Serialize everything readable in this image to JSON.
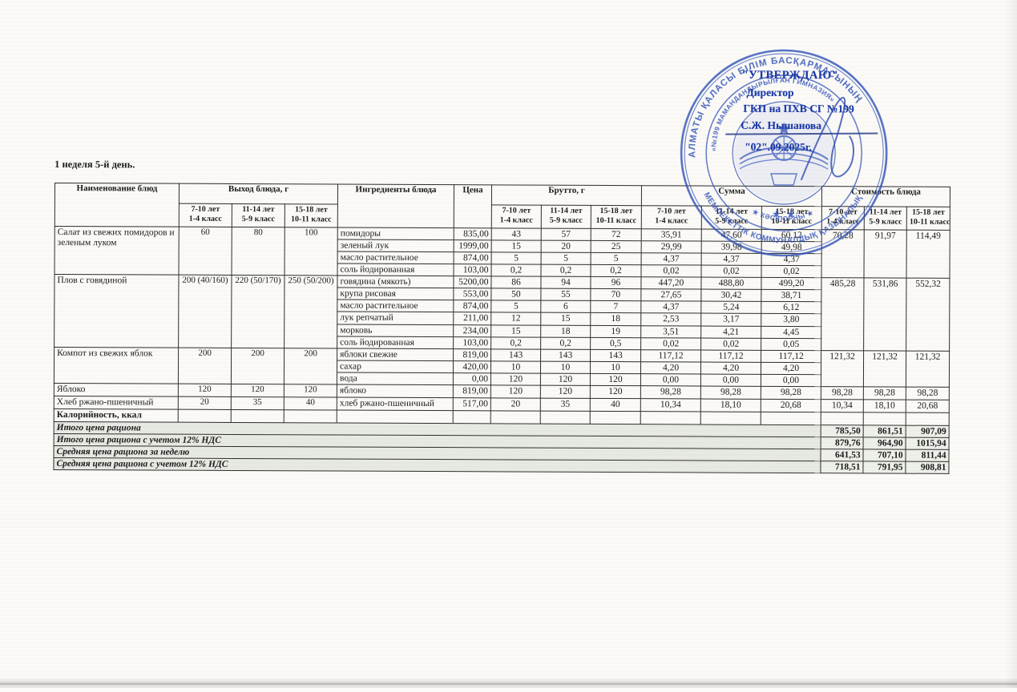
{
  "page_title": "1 неделя 5-й день.",
  "colors": {
    "stamp_blue": "#3353b8",
    "stamp_text_blue": "#1d3ba6",
    "summary_shade": "#e7e9e3"
  },
  "stamp": {
    "approve": "\"УТВЕРЖДАЮ\"",
    "role": "Директор",
    "org": "ГКП на ПХВ СГ №199",
    "person": "С.Ж. Нышанова",
    "date": "\"02\".09.2025г.",
    "ring_outer_top": "АЛМАТЫ ҚАЛАСЫ БІЛІМ БАСҚАРМАСЫНЫҢ",
    "ring_outer_bottom": "МЕМЛЕКЕТТІК КОММУНАЛДЫҚ ҚАЗЫНАЛЫҚ",
    "ring_inner_top": "«№199 МАМАНДАНДЫРЫЛҒАН ГИМНАЗИЯ»",
    "ring_inner_bottom": "★ КӘСІПОРНЫ ★"
  },
  "table": {
    "headers": {
      "name": "Наименование блюд",
      "output_group": "Выход блюда, г",
      "ingredients": "Ингредиенты блюда",
      "price": "Цена",
      "brutto_group": "Брутто, г",
      "sum_group": "Сумма",
      "cost_group": "Стоимость блюда",
      "age_columns": [
        [
          "7-10 лет",
          "1-4 класс"
        ],
        [
          "11-14 лет",
          "5-9 класс"
        ],
        [
          "15-18 лет",
          "10-11 класс"
        ]
      ]
    },
    "dishes": [
      {
        "name": "Салат из свежих помидоров и зеленым луком",
        "output": [
          "60",
          "80",
          "100"
        ],
        "cost": [
          "70,28",
          "91,97",
          "114,49"
        ],
        "ingredients": [
          {
            "name": "помидоры",
            "price": "835,00",
            "brutto": [
              "43",
              "57",
              "72"
            ],
            "sum": [
              "35,91",
              "47,60",
              "60,12"
            ]
          },
          {
            "name": "зеленый лук",
            "price": "1999,00",
            "brutto": [
              "15",
              "20",
              "25"
            ],
            "sum": [
              "29,99",
              "39,98",
              "49,98"
            ]
          },
          {
            "name": "масло растительное",
            "price": "874,00",
            "brutto": [
              "5",
              "5",
              "5"
            ],
            "sum": [
              "4,37",
              "4,37",
              "4,37"
            ]
          },
          {
            "name": "соль йодированная",
            "price": "103,00",
            "brutto": [
              "0,2",
              "0,2",
              "0,2"
            ],
            "sum": [
              "0,02",
              "0,02",
              "0,02"
            ]
          }
        ]
      },
      {
        "name": "Плов с говядиной",
        "output": [
          "200 (40/160)",
          "220 (50/170)",
          "250 (50/200)"
        ],
        "cost": [
          "485,28",
          "531,86",
          "552,32"
        ],
        "ingredients": [
          {
            "name": "говядина (мякоть)",
            "price": "5200,00",
            "brutto": [
              "86",
              "94",
              "96"
            ],
            "sum": [
              "447,20",
              "488,80",
              "499,20"
            ]
          },
          {
            "name": "крупа рисовая",
            "price": "553,00",
            "brutto": [
              "50",
              "55",
              "70"
            ],
            "sum": [
              "27,65",
              "30,42",
              "38,71"
            ]
          },
          {
            "name": "масло растительное",
            "price": "874,00",
            "brutto": [
              "5",
              "6",
              "7"
            ],
            "sum": [
              "4,37",
              "5,24",
              "6,12"
            ]
          },
          {
            "name": "лук репчатый",
            "price": "211,00",
            "brutto": [
              "12",
              "15",
              "18"
            ],
            "sum": [
              "2,53",
              "3,17",
              "3,80"
            ]
          },
          {
            "name": "морковь",
            "price": "234,00",
            "brutto": [
              "15",
              "18",
              "19"
            ],
            "sum": [
              "3,51",
              "4,21",
              "4,45"
            ]
          },
          {
            "name": "соль йодированная",
            "price": "103,00",
            "brutto": [
              "0,2",
              "0,2",
              "0,5"
            ],
            "sum": [
              "0,02",
              "0,02",
              "0,05"
            ]
          }
        ]
      },
      {
        "name": "Компот из свежих яблок",
        "output": [
          "200",
          "200",
          "200"
        ],
        "cost": [
          "121,32",
          "121,32",
          "121,32"
        ],
        "ingredients": [
          {
            "name": "яблоки свежие",
            "price": "819,00",
            "brutto": [
              "143",
              "143",
              "143"
            ],
            "sum": [
              "117,12",
              "117,12",
              "117,12"
            ]
          },
          {
            "name": "сахар",
            "price": "420,00",
            "brutto": [
              "10",
              "10",
              "10"
            ],
            "sum": [
              "4,20",
              "4,20",
              "4,20"
            ]
          },
          {
            "name": "вода",
            "price": "0,00",
            "brutto": [
              "120",
              "120",
              "120"
            ],
            "sum": [
              "0,00",
              "0,00",
              "0,00"
            ]
          }
        ]
      },
      {
        "name": "Яблоко",
        "output": [
          "120",
          "120",
          "120"
        ],
        "cost": [
          "98,28",
          "98,28",
          "98,28"
        ],
        "ingredients": [
          {
            "name": "яблоко",
            "price": "819,00",
            "brutto": [
              "120",
              "120",
              "120"
            ],
            "sum": [
              "98,28",
              "98,28",
              "98,28"
            ]
          }
        ]
      },
      {
        "name": "Хлеб ржано-пшеничный",
        "output": [
          "20",
          "35",
          "40"
        ],
        "cost": [
          "10,34",
          "18,10",
          "20,68"
        ],
        "ingredients": [
          {
            "name": "хлеб ржано-пшеничный",
            "price": "517,00",
            "brutto": [
              "20",
              "35",
              "40"
            ],
            "sum": [
              "10,34",
              "18,10",
              "20,68"
            ]
          }
        ]
      }
    ],
    "calories_label": "Калорийность, ккал",
    "summary_rows": [
      {
        "label": "Итого цена рациона",
        "values": [
          "785,50",
          "861,51",
          "907,09"
        ]
      },
      {
        "label": "Итого цена рациона с учетом 12% НДС",
        "values": [
          "879,76",
          "964,90",
          "1015,94"
        ]
      },
      {
        "label": "Средняя цена рациона за неделю",
        "values": [
          "641,53",
          "707,10",
          "811,44"
        ]
      },
      {
        "label": "Средняя цена рациона с учетом 12% НДС",
        "values": [
          "718,51",
          "791,95",
          "908,81"
        ]
      }
    ]
  }
}
